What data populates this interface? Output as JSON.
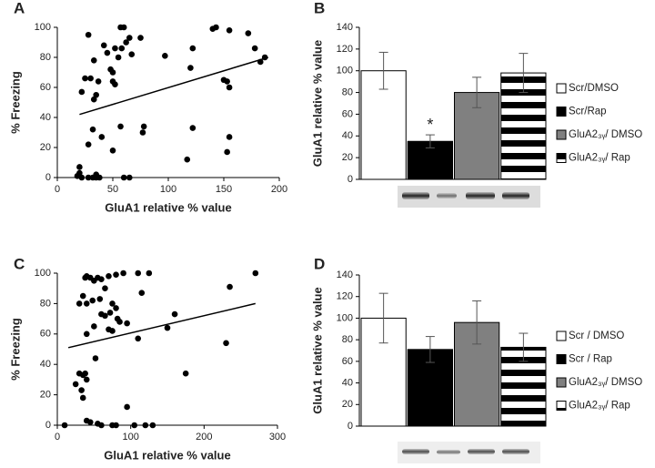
{
  "chart_data": [
    {
      "type": "scatter",
      "panel": "A",
      "xlabel": "GluA1 relative % value",
      "ylabel": "% Freezing",
      "xlim": [
        0,
        200
      ],
      "xticks": [
        0,
        50,
        100,
        150,
        200
      ],
      "ylim": [
        0,
        100
      ],
      "yticks": [
        0,
        20,
        40,
        60,
        80,
        100
      ],
      "color": "#000000",
      "x": [
        28,
        33,
        30,
        25,
        22,
        33,
        35,
        37,
        45,
        42,
        48,
        50,
        52,
        50,
        52,
        55,
        57,
        60,
        58,
        62,
        65,
        67,
        75,
        97,
        120,
        122,
        140,
        143,
        155,
        172,
        178,
        183,
        187,
        150,
        153,
        155,
        155,
        153,
        122,
        117,
        78,
        77,
        57,
        50,
        40,
        28,
        32,
        20,
        20,
        18,
        22,
        28,
        32,
        35,
        38,
        60,
        65,
        35
      ],
      "y": [
        95,
        78,
        66,
        66,
        57,
        52,
        55,
        64,
        83,
        88,
        72,
        70,
        62,
        64,
        86,
        80,
        100,
        100,
        86,
        90,
        93,
        82,
        93,
        81,
        73,
        86,
        99,
        100,
        98,
        96,
        86,
        77,
        80,
        65,
        64,
        60,
        27,
        17,
        33,
        12,
        34,
        30,
        34,
        18,
        27,
        22,
        32,
        7,
        3,
        1,
        0,
        0,
        0,
        2,
        0,
        0,
        0,
        0
      ],
      "trendline": {
        "x": [
          20,
          190
        ],
        "y": [
          42,
          80
        ]
      }
    },
    {
      "type": "bar",
      "panel": "B",
      "ylabel": "GluA1 relative % value",
      "annotation": "*",
      "ylim": [
        0,
        140
      ],
      "yticks": [
        0,
        20,
        40,
        60,
        80,
        100,
        120,
        140
      ],
      "series": [
        {
          "name": "Scr/DMSO",
          "color": "#ffffff",
          "values": [
            100
          ],
          "errors": [
            17
          ]
        },
        {
          "name": "Scr/Rap",
          "color": "#000000",
          "values": [
            35
          ],
          "errors": [
            6
          ]
        },
        {
          "name": "GluA2₃ᵧ/ DMSO",
          "color": "#808080",
          "values": [
            80
          ],
          "errors": [
            14
          ]
        },
        {
          "name": "GluA2₃ᵧ/ Rap",
          "color": "striped",
          "values": [
            98
          ],
          "errors": [
            18
          ]
        }
      ]
    },
    {
      "type": "scatter",
      "panel": "C",
      "xlabel": "GluA1 relative % value",
      "ylabel": "% Freezing",
      "xlim": [
        0,
        300
      ],
      "xticks": [
        0,
        100,
        200,
        300
      ],
      "ylim": [
        0,
        100
      ],
      "yticks": [
        0,
        20,
        40,
        60,
        80,
        100
      ],
      "color": "#000000",
      "x": [
        10,
        25,
        30,
        35,
        38,
        40,
        45,
        50,
        55,
        60,
        65,
        70,
        80,
        90,
        110,
        125,
        115,
        40,
        48,
        58,
        60,
        65,
        72,
        75,
        80,
        82,
        70,
        75,
        85,
        95,
        40,
        50,
        52,
        35,
        38,
        33,
        35,
        40,
        30,
        40,
        45,
        55,
        60,
        75,
        80,
        95,
        105,
        120,
        130,
        110,
        150,
        160,
        175,
        230,
        235,
        270
      ],
      "y": [
        0,
        27,
        80,
        85,
        97,
        98,
        97,
        95,
        97,
        96,
        90,
        98,
        99,
        100,
        100,
        100,
        87,
        80,
        82,
        83,
        73,
        72,
        74,
        80,
        77,
        70,
        63,
        62,
        68,
        67,
        60,
        65,
        44,
        33,
        34,
        23,
        18,
        30,
        34,
        3,
        2,
        1,
        0,
        0,
        0,
        12,
        0,
        0,
        0,
        57,
        64,
        73,
        34,
        54,
        91,
        100
      ],
      "trendline": {
        "x": [
          15,
          270
        ],
        "y": [
          51,
          80
        ]
      }
    },
    {
      "type": "bar",
      "panel": "D",
      "ylabel": "GluA1 relative % value",
      "ylim": [
        0,
        140
      ],
      "yticks": [
        0,
        20,
        40,
        60,
        80,
        100,
        120,
        140
      ],
      "series": [
        {
          "name": "Scr / DMSO",
          "color": "#ffffff",
          "values": [
            100
          ],
          "errors": [
            23
          ]
        },
        {
          "name": "Scr / Rap",
          "color": "#000000",
          "values": [
            71
          ],
          "errors": [
            12
          ]
        },
        {
          "name": "GluA2₃ᵧ/ DMSO",
          "color": "#808080",
          "values": [
            96
          ],
          "errors": [
            20
          ]
        },
        {
          "name": "GluA2₃ᵧ/ Rap",
          "color": "striped",
          "values": [
            73
          ],
          "errors": [
            13
          ]
        }
      ]
    }
  ]
}
